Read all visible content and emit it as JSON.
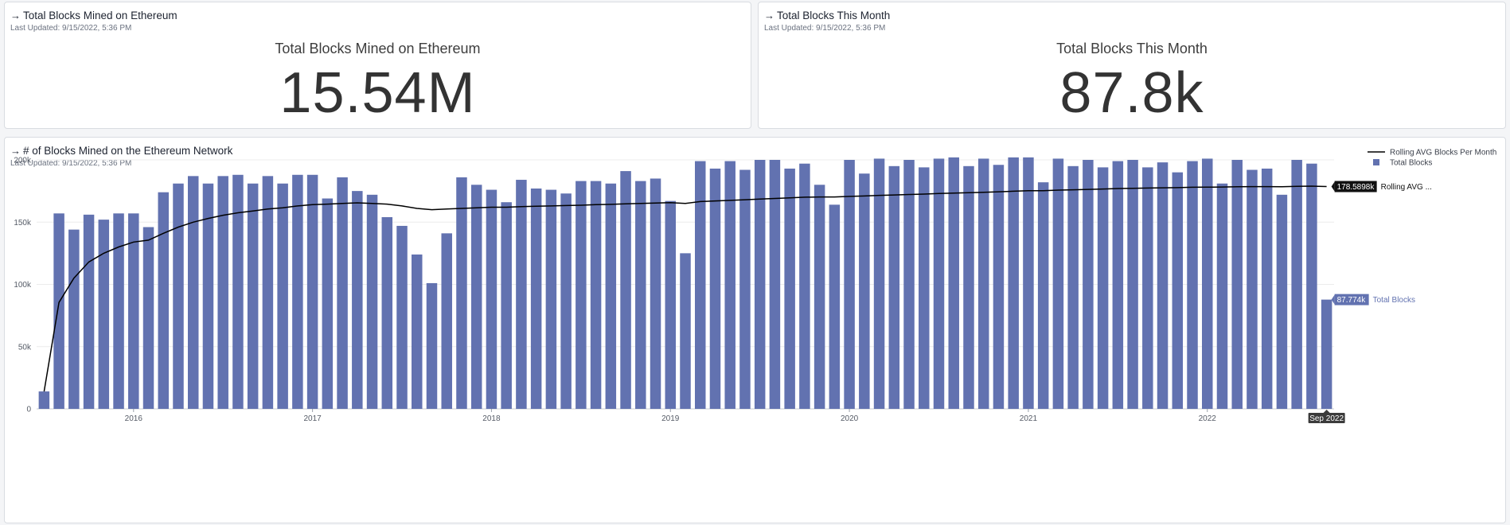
{
  "cards": {
    "total": {
      "title": "Total Blocks Mined on Ethereum",
      "updated": "Last Updated: 9/15/2022, 5:36 PM",
      "label": "Total Blocks Mined on Ethereum",
      "value": "15.54M"
    },
    "month": {
      "title": "Total Blocks This Month",
      "updated": "Last Updated: 9/15/2022, 5:36 PM",
      "label": "Total Blocks This Month",
      "value": "87.8k"
    },
    "chart": {
      "title": "# of Blocks Mined on the Ethereum Network",
      "updated": "Last Updated: 9/15/2022, 5:36 PM"
    }
  },
  "icons": {
    "title_arrow": "arrow-right-icon",
    "legend_bar": "square-swatch-icon",
    "legend_line": "line-swatch-icon"
  },
  "colors": {
    "bar": "#6272b0",
    "line": "#000000",
    "grid": "#ececec"
  },
  "chart_data": {
    "type": "bar",
    "y_ticks": [
      "200k",
      "150k",
      "100k",
      "50k",
      "0"
    ],
    "y_tick_values": [
      200000,
      150000,
      100000,
      50000,
      0
    ],
    "ylim": [
      0,
      200000
    ],
    "x_ticks": [
      "2016",
      "2017",
      "2018",
      "2019",
      "2020",
      "2021",
      "2022"
    ],
    "x_tick_index": [
      6,
      18,
      30,
      42,
      54,
      66,
      78
    ],
    "categories": [
      "Jul 2015",
      "Aug 2015",
      "Sep 2015",
      "Oct 2015",
      "Nov 2015",
      "Dec 2015",
      "Jan 2016",
      "Feb 2016",
      "Mar 2016",
      "Apr 2016",
      "May 2016",
      "Jun 2016",
      "Jul 2016",
      "Aug 2016",
      "Sep 2016",
      "Oct 2016",
      "Nov 2016",
      "Dec 2016",
      "Jan 2017",
      "Feb 2017",
      "Mar 2017",
      "Apr 2017",
      "May 2017",
      "Jun 2017",
      "Jul 2017",
      "Aug 2017",
      "Sep 2017",
      "Oct 2017",
      "Nov 2017",
      "Dec 2017",
      "Jan 2018",
      "Feb 2018",
      "Mar 2018",
      "Apr 2018",
      "May 2018",
      "Jun 2018",
      "Jul 2018",
      "Aug 2018",
      "Sep 2018",
      "Oct 2018",
      "Nov 2018",
      "Dec 2018",
      "Jan 2019",
      "Feb 2019",
      "Mar 2019",
      "Apr 2019",
      "May 2019",
      "Jun 2019",
      "Jul 2019",
      "Aug 2019",
      "Sep 2019",
      "Oct 2019",
      "Nov 2019",
      "Dec 2019",
      "Jan 2020",
      "Feb 2020",
      "Mar 2020",
      "Apr 2020",
      "May 2020",
      "Jun 2020",
      "Jul 2020",
      "Aug 2020",
      "Sep 2020",
      "Oct 2020",
      "Nov 2020",
      "Dec 2020",
      "Jan 2021",
      "Feb 2021",
      "Mar 2021",
      "Apr 2021",
      "May 2021",
      "Jun 2021",
      "Jul 2021",
      "Aug 2021",
      "Sep 2021",
      "Oct 2021",
      "Nov 2021",
      "Dec 2021",
      "Jan 2022",
      "Feb 2022",
      "Mar 2022",
      "Apr 2022",
      "May 2022",
      "Jun 2022",
      "Jul 2022",
      "Aug 2022",
      "Sep 2022"
    ],
    "series": [
      {
        "name": "Total Blocks",
        "values": [
          14000,
          157000,
          144000,
          156000,
          152000,
          157000,
          157000,
          146000,
          174000,
          181000,
          187000,
          181000,
          187000,
          188000,
          181000,
          187000,
          181000,
          188000,
          188000,
          169000,
          186000,
          175000,
          172000,
          154000,
          147000,
          124000,
          101000,
          141000,
          186000,
          180000,
          176000,
          166000,
          184000,
          177000,
          176000,
          173000,
          183000,
          183000,
          181000,
          191000,
          183000,
          185000,
          167000,
          125000,
          199000,
          193000,
          199000,
          192000,
          200000,
          200000,
          193000,
          197000,
          180000,
          164000,
          200000,
          189000,
          201000,
          195000,
          200000,
          194000,
          201000,
          202000,
          195000,
          201000,
          196000,
          202000,
          202000,
          182000,
          201000,
          195000,
          200000,
          194000,
          199000,
          200000,
          194000,
          198000,
          190000,
          199000,
          201000,
          181000,
          200000,
          192000,
          193000,
          172000,
          200000,
          197000,
          87774
        ]
      },
      {
        "name": "Rolling AVG Blocks Per Month",
        "values": [
          14000,
          85500,
          105000,
          118000,
          125000,
          130000,
          134000,
          135500,
          141000,
          146000,
          150000,
          153000,
          155500,
          157500,
          159000,
          160500,
          161500,
          163000,
          164000,
          164500,
          165000,
          165500,
          165000,
          164500,
          163000,
          161000,
          160000,
          160500,
          161000,
          161500,
          162000,
          162000,
          162500,
          162800,
          163000,
          163300,
          163600,
          164000,
          164300,
          164700,
          165000,
          165300,
          165600,
          165000,
          166500,
          167000,
          167500,
          168000,
          168500,
          169000,
          169500,
          170000,
          170200,
          170200,
          170700,
          171000,
          171500,
          171800,
          172200,
          172500,
          173000,
          173300,
          173700,
          174000,
          174400,
          174800,
          175200,
          175300,
          175700,
          176000,
          176300,
          176600,
          177000,
          177200,
          177400,
          177600,
          177700,
          178000,
          178100,
          178200,
          178400,
          178500,
          178500,
          178400,
          178700,
          178900,
          178590
        ]
      }
    ],
    "legend": [
      "Rolling AVG Blocks Per Month",
      "Total Blocks"
    ],
    "legend_position": "top-right",
    "end_labels": {
      "line_value": "178.5898k",
      "line_name": "Rolling AVG ...",
      "bar_value": "87.774k",
      "bar_name": "Total Blocks"
    },
    "hover_x_label": "Sep 2022"
  }
}
